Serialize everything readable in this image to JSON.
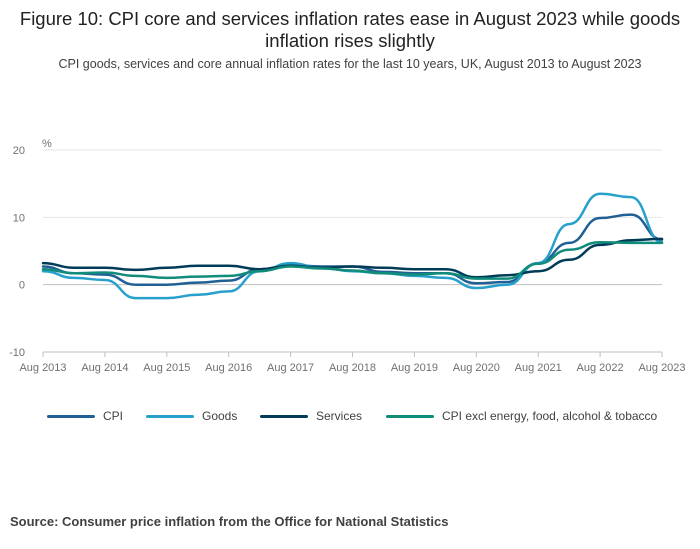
{
  "title": "Figure 10: CPI core and services inflation rates ease in August 2023 while goods inflation rises slightly",
  "subtitle": "CPI goods, services and core annual inflation rates for the last 10 years, UK, August 2013 to August 2023",
  "source": "Source: Consumer price inflation from the Office for National Statistics",
  "colors": {
    "cpi": "#206095",
    "goods": "#27a0cc",
    "services": "#003c57",
    "core": "#118c7b",
    "grid": "#e6e6e6",
    "axis": "#bfbfbf"
  },
  "chart_data": {
    "type": "line",
    "ylabel": "%",
    "ylim": [
      -10,
      20
    ],
    "yticks": [
      20,
      10,
      0,
      -10
    ],
    "xticks": [
      "Aug 2013",
      "Aug 2014",
      "Aug 2015",
      "Aug 2016",
      "Aug 2017",
      "Aug 2018",
      "Aug 2019",
      "Aug 2020",
      "Aug 2021",
      "Aug 2022",
      "Aug 2023"
    ],
    "grid": true,
    "legend_position": "bottom",
    "x_points_description": "Semi-annual anchor points from Aug 2013 to Aug 2023",
    "x": [
      "Aug 2013",
      "Feb 2014",
      "Aug 2014",
      "Feb 2015",
      "Aug 2015",
      "Feb 2016",
      "Aug 2016",
      "Feb 2017",
      "Aug 2017",
      "Feb 2018",
      "Aug 2018",
      "Feb 2019",
      "Aug 2019",
      "Feb 2020",
      "Aug 2020",
      "Feb 2021",
      "Aug 2021",
      "Feb 2022",
      "Aug 2022",
      "Feb 2023",
      "Aug 2023"
    ],
    "series": [
      {
        "name": "CPI",
        "key": "cpi",
        "values": [
          2.7,
          1.7,
          1.5,
          0.0,
          0.0,
          0.3,
          0.6,
          2.3,
          2.9,
          2.7,
          2.7,
          1.9,
          1.7,
          1.7,
          0.2,
          0.4,
          3.2,
          6.2,
          9.9,
          10.4,
          6.7
        ]
      },
      {
        "name": "Goods",
        "key": "goods",
        "values": [
          2.0,
          1.0,
          0.7,
          -2.0,
          -2.0,
          -1.5,
          -1.0,
          2.0,
          3.2,
          2.5,
          2.0,
          1.7,
          1.3,
          1.0,
          -0.5,
          0.0,
          3.2,
          9.0,
          13.5,
          13.0,
          6.3
        ]
      },
      {
        "name": "Services",
        "key": "services",
        "values": [
          3.2,
          2.5,
          2.5,
          2.2,
          2.5,
          2.8,
          2.8,
          2.3,
          2.8,
          2.5,
          2.7,
          2.5,
          2.3,
          2.3,
          1.1,
          1.4,
          2.0,
          3.7,
          5.9,
          6.6,
          6.8
        ]
      },
      {
        "name": "CPI excl energy, food, alcohol & tobacco",
        "key": "core",
        "values": [
          2.3,
          1.7,
          1.8,
          1.3,
          1.0,
          1.2,
          1.3,
          2.0,
          2.7,
          2.4,
          2.1,
          1.7,
          1.5,
          1.7,
          0.9,
          0.9,
          3.1,
          5.2,
          6.3,
          6.2,
          6.2
        ]
      }
    ]
  }
}
